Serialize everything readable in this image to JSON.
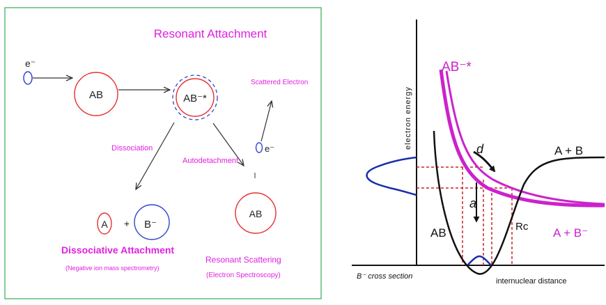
{
  "left_panel": {
    "title": "Resonant Attachment",
    "electron_label": "e⁻",
    "ab_label": "AB",
    "anion_label": "AB⁻*",
    "scattered_electron_label": "Scattered Electron",
    "scattered_e_label": "e⁻",
    "dissociation_label": "Dissociation",
    "autodetachment_label": "Autodetachment",
    "product_a_label": "A",
    "plus_label": "+",
    "product_b_label": "B⁻",
    "ab_scattered_label": "AB",
    "dissociative_attachment_label": "Dissociative Attachment",
    "dissociative_attachment_sub": "(Negative ion mass spectrometry)",
    "resonant_scattering_label": "Resonant Scattering",
    "resonant_scattering_sub": "(Electron Spectroscopy)",
    "colors": {
      "frame": "#33aa55",
      "circle": "#e53030",
      "electron": "#3344cc",
      "label": "#e020e0",
      "arrow": "#333333"
    }
  },
  "right_panel": {
    "y_axis_label": "electron energy",
    "x_axis_label": "internuclear distance",
    "cross_section_label": "B⁻ cross section",
    "anion_curve_label": "AB⁻*",
    "d_label": "d",
    "a_label": "a",
    "neutral_curve_label": "AB",
    "asymptote_neutral_label": "A + B",
    "asymptote_anion_label": "A + B⁻",
    "crossing_label": "Rc",
    "colors": {
      "anion_curve": "#cc22cc",
      "neutral_curve": "#111111",
      "dashed": "#cc2222",
      "cross_section": "#1a2ea8"
    }
  }
}
